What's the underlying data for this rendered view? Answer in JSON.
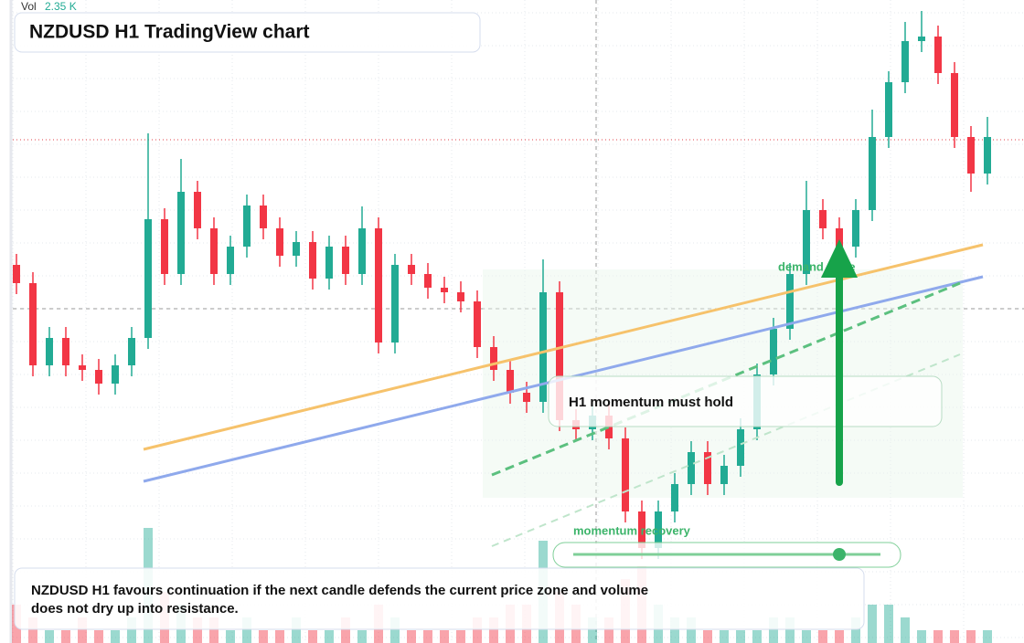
{
  "chart_data": {
    "type": "candlestick",
    "title": "NZDUSD H1 TradingView chart",
    "volume_label": "Vol",
    "volume_value": "2.35 K",
    "annotations": [
      "H1 momentum must hold",
      "demand node",
      "momentum recovery"
    ],
    "caption": "NZDUSD H1 favours continuation if the next candle defends the current price zone and volume does not dry up into resistance.",
    "ylim": [
      0,
      704
    ],
    "volume_lim": [
      0,
      10
    ],
    "up_color": "#22ab94",
    "down_color": "#f23645",
    "open": [
      414,
      394,
      304,
      334,
      304,
      299,
      284,
      304,
      334,
      464,
      404,
      494,
      454,
      404,
      434,
      479,
      454,
      424,
      439,
      399,
      434,
      404,
      454,
      329,
      414,
      404,
      389,
      384,
      374,
      324,
      299,
      274,
      264,
      384,
      244,
      234,
      249,
      224,
      144,
      104,
      144,
      174,
      209,
      174,
      194,
      234,
      294,
      344,
      404,
      474,
      454,
      434,
      474,
      554,
      614,
      659,
      664,
      624,
      554,
      514
    ],
    "high": [
      426,
      406,
      346,
      346,
      316,
      311,
      316,
      346,
      558,
      476,
      530,
      506,
      466,
      446,
      491,
      491,
      466,
      451,
      451,
      446,
      446,
      478,
      466,
      426,
      426,
      416,
      401,
      396,
      386,
      336,
      311,
      286,
      420,
      396,
      256,
      261,
      261,
      236,
      156,
      156,
      186,
      221,
      221,
      206,
      246,
      306,
      356,
      416,
      506,
      486,
      466,
      486,
      584,
      626,
      680,
      692,
      676,
      636,
      566,
      576
    ],
    "low": [
      382,
      292,
      292,
      292,
      287,
      272,
      272,
      292,
      322,
      392,
      392,
      442,
      392,
      392,
      422,
      442,
      412,
      412,
      387,
      387,
      392,
      392,
      317,
      317,
      392,
      377,
      372,
      362,
      312,
      287,
      262,
      252,
      252,
      232,
      222,
      222,
      212,
      132,
      92,
      92,
      132,
      162,
      162,
      162,
      182,
      222,
      282,
      332,
      392,
      442,
      422,
      422,
      462,
      542,
      602,
      647,
      612,
      542,
      494,
      502
    ],
    "close": [
      394,
      304,
      334,
      304,
      299,
      284,
      304,
      334,
      464,
      404,
      494,
      454,
      404,
      434,
      479,
      454,
      424,
      439,
      399,
      434,
      404,
      454,
      329,
      414,
      404,
      389,
      384,
      374,
      324,
      299,
      274,
      264,
      384,
      244,
      234,
      249,
      224,
      144,
      104,
      144,
      174,
      209,
      174,
      194,
      234,
      294,
      344,
      404,
      474,
      454,
      434,
      474,
      554,
      614,
      659,
      664,
      624,
      554,
      514,
      554
    ],
    "volume": [
      3,
      2,
      1,
      1,
      2,
      1,
      1,
      2,
      9,
      4,
      3,
      2,
      2,
      1,
      2,
      1,
      1,
      2,
      1,
      1,
      2,
      1,
      3,
      2,
      1,
      1,
      1,
      1,
      2,
      2,
      3,
      3,
      8,
      4,
      3,
      2,
      2,
      5,
      6,
      3,
      2,
      2,
      1,
      1,
      1,
      1,
      2,
      2,
      1,
      1,
      1,
      2,
      3,
      3,
      2,
      1,
      1,
      1,
      1,
      1
    ]
  }
}
